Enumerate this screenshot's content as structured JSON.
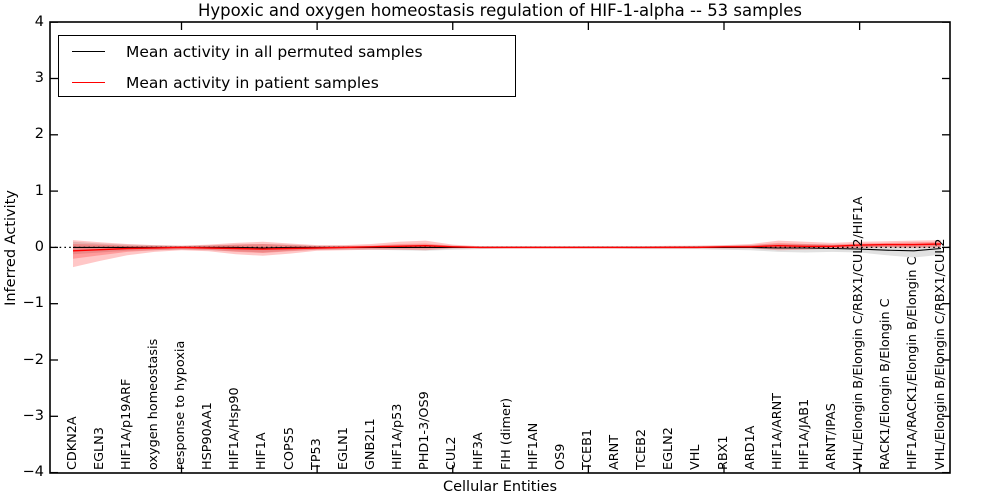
{
  "title": "Hypoxic and oxygen homeostasis regulation of HIF-1-alpha -- 53 samples",
  "xlabel": "Cellular Entities",
  "ylabel": "Inferred Activity",
  "legend": [
    {
      "label": "Mean activity in all permuted samples",
      "color": "#000000"
    },
    {
      "label": "Mean activity in patient samples",
      "color": "#ff0000"
    }
  ],
  "colors": {
    "permuted_line": "#000000",
    "patient_line": "#ff0000",
    "permuted_band": "rgba(120,120,120,0.22)",
    "patient_band": "rgba(255,0,0,0.22)",
    "zero_line": "#000000",
    "axis": "#000000"
  },
  "chart_data": {
    "type": "line",
    "title": "Hypoxic and oxygen homeostasis regulation of HIF-1-alpha -- 53 samples",
    "xlabel": "Cellular Entities",
    "ylabel": "Inferred Activity",
    "ylim": [
      -4,
      4
    ],
    "yticks": [
      {
        "label": "4",
        "value": 4
      },
      {
        "label": "3",
        "value": 3
      },
      {
        "label": "2",
        "value": 2
      },
      {
        "label": "1",
        "value": 1
      },
      {
        "label": "0",
        "value": 0
      },
      {
        "label": "−1",
        "value": -1
      },
      {
        "label": "−2",
        "value": -2
      },
      {
        "label": "−3",
        "value": -3
      },
      {
        "label": "−4",
        "value": -4
      }
    ],
    "xticks_major_indices": [
      4,
      9,
      14,
      19,
      24,
      29
    ],
    "legend_position": "upper left",
    "grid": false,
    "zero_reference_line": 0,
    "categories": [
      "CDKN2A",
      "EGLN3",
      "HIF1A/p19ARF",
      "oxygen homeostasis",
      "response to hypoxia",
      "HSP90AA1",
      "HIF1A/Hsp90",
      "HIF1A",
      "COPS5",
      "TP53",
      "EGLN1",
      "GNB2L1",
      "HIF1A/p53",
      "PHD1-3/OS9",
      "CUL2",
      "HIF3A",
      "FIH (dimer)",
      "HIF1AN",
      "OS9",
      "TCEB1",
      "ARNT",
      "TCEB2",
      "EGLN2",
      "VHL",
      "RBX1",
      "ARD1A",
      "HIF1A/ARNT",
      "HIF1A/JAB1",
      "ARNT/IPAS",
      "VHL/Elongin B/Elongin C/RBX1/CUL2/HIF1A",
      "RACK1/Elongin B/Elongin C",
      "HIF1A/RACK1/Elongin B/Elongin C",
      "VHL/Elongin B/Elongin C/RBX1/CUL2"
    ],
    "series": [
      {
        "name": "Mean activity in all permuted samples",
        "color": "#000000",
        "values": [
          0,
          0,
          0,
          0,
          0,
          0,
          0,
          -0.01,
          0,
          0,
          0,
          0,
          0,
          0,
          0,
          0,
          0,
          0,
          0,
          0,
          0,
          0,
          0,
          0,
          0,
          0,
          -0.01,
          -0.01,
          -0.02,
          -0.03,
          -0.05,
          -0.06,
          -0.02
        ]
      },
      {
        "name": "Mean activity in patient samples",
        "color": "#ff0000",
        "values": [
          -0.06,
          -0.04,
          -0.02,
          -0.01,
          0,
          -0.01,
          -0.02,
          -0.03,
          -0.02,
          -0.01,
          0,
          0.01,
          0.02,
          0.03,
          0.01,
          0,
          0,
          0,
          0,
          0,
          0,
          0,
          0,
          0,
          0.01,
          0.01,
          0.03,
          0.02,
          0.02,
          0.04,
          0.05,
          0.05,
          0.06
        ]
      }
    ],
    "bands": [
      {
        "name": "permuted-range",
        "upper": [
          0.1,
          0.07,
          0.05,
          0.04,
          0.03,
          0.04,
          0.05,
          0.06,
          0.05,
          0.03,
          0.03,
          0.03,
          0.04,
          0.05,
          0.03,
          0.02,
          0.02,
          0.02,
          0.02,
          0.02,
          0.02,
          0.02,
          0.02,
          0.03,
          0.03,
          0.04,
          0.06,
          0.06,
          0.05,
          0.05,
          0.04,
          0.05,
          0.07
        ],
        "lower": [
          -0.12,
          -0.09,
          -0.06,
          -0.05,
          -0.04,
          -0.05,
          -0.07,
          -0.09,
          -0.06,
          -0.04,
          -0.04,
          -0.04,
          -0.05,
          -0.06,
          -0.04,
          -0.03,
          -0.02,
          -0.02,
          -0.02,
          -0.02,
          -0.02,
          -0.03,
          -0.03,
          -0.03,
          -0.04,
          -0.05,
          -0.08,
          -0.09,
          -0.08,
          -0.09,
          -0.14,
          -0.18,
          -0.13
        ]
      },
      {
        "name": "patient-range-outer",
        "upper": [
          0.13,
          0.09,
          0.06,
          0.04,
          0.03,
          0.05,
          0.08,
          0.1,
          0.07,
          0.04,
          0.04,
          0.06,
          0.1,
          0.12,
          0.05,
          0.02,
          0.02,
          0.02,
          0.02,
          0.02,
          0.02,
          0.02,
          0.03,
          0.03,
          0.04,
          0.06,
          0.12,
          0.1,
          0.08,
          0.1,
          0.11,
          0.12,
          0.13
        ],
        "lower": [
          -0.35,
          -0.24,
          -0.14,
          -0.08,
          -0.05,
          -0.07,
          -0.12,
          -0.15,
          -0.11,
          -0.06,
          -0.05,
          -0.04,
          -0.04,
          -0.05,
          -0.02,
          -0.02,
          -0.02,
          -0.02,
          -0.02,
          -0.02,
          -0.02,
          -0.02,
          -0.02,
          -0.02,
          -0.02,
          -0.02,
          -0.05,
          -0.04,
          -0.02,
          -0.01,
          0.0,
          -0.01,
          0.0
        ]
      },
      {
        "name": "patient-range-inner",
        "upper": [
          0.06,
          0.05,
          0.03,
          0.02,
          0.02,
          0.03,
          0.05,
          0.06,
          0.04,
          0.02,
          0.02,
          0.03,
          0.06,
          0.07,
          0.03,
          0.01,
          0.01,
          0.01,
          0.01,
          0.01,
          0.01,
          0.01,
          0.02,
          0.02,
          0.03,
          0.04,
          0.08,
          0.06,
          0.05,
          0.07,
          0.08,
          0.09,
          0.1
        ],
        "lower": [
          -0.2,
          -0.14,
          -0.08,
          -0.05,
          -0.03,
          -0.04,
          -0.08,
          -0.1,
          -0.07,
          -0.04,
          -0.03,
          -0.02,
          -0.02,
          -0.02,
          -0.01,
          -0.01,
          -0.01,
          -0.01,
          -0.01,
          -0.01,
          -0.01,
          -0.01,
          -0.01,
          -0.01,
          -0.01,
          -0.01,
          -0.02,
          -0.02,
          -0.01,
          0.0,
          0.01,
          0.01,
          0.02
        ]
      }
    ]
  }
}
